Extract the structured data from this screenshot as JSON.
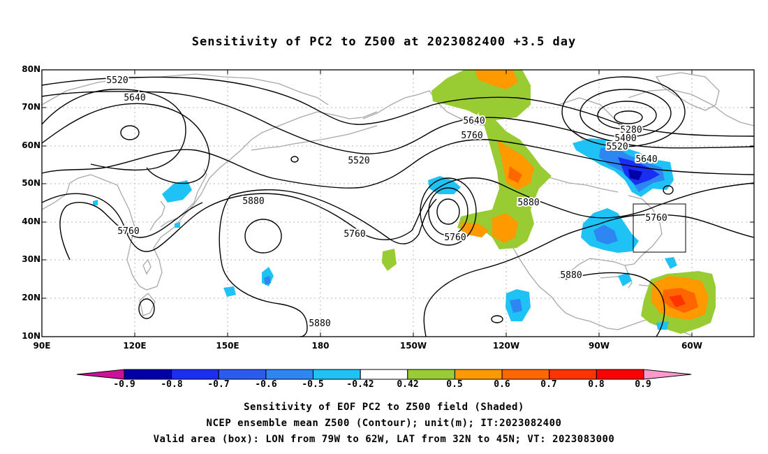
{
  "title": "Sensitivity of PC2 to Z500 at 2023082400 +3.5 day",
  "lat_labels": [
    "80N",
    "70N",
    "60N",
    "50N",
    "40N",
    "30N",
    "20N",
    "10N"
  ],
  "lon_labels": [
    "90E",
    "120E",
    "150E",
    "180",
    "150W",
    "120W",
    "90W",
    "60W"
  ],
  "contour_labels": [
    "5520",
    "5640",
    "5520",
    "5760",
    "5880",
    "5760",
    "5760",
    "5640",
    "5760",
    "5880",
    "5880",
    "5880",
    "5280",
    "5400",
    "5520",
    "5640",
    "5760"
  ],
  "colorbar": {
    "ticks": [
      "-0.9",
      "-0.8",
      "-0.7",
      "-0.6",
      "-0.5",
      "-0.42",
      "0.42",
      "0.5",
      "0.6",
      "0.7",
      "0.8",
      "0.9"
    ],
    "colors": [
      "#0000a8",
      "#1a2ef2",
      "#2a5cf0",
      "#2e86f2",
      "#1ec2f5",
      "#ffffff",
      "#99cc33",
      "#ff9900",
      "#ff6600",
      "#ff3300",
      "#ff0000"
    ],
    "low_end_color": "#cc1199",
    "high_end_color": "#ff99cc"
  },
  "captions": [
    "Sensitivity of EOF PC2 to Z500 field (Shaded)",
    "NCEP ensemble mean Z500 (Contour); unit(m); IT:2023082400",
    "Valid area (box): LON from 79W to 62W, LAT from 32N to 45N; VT: 2023083000"
  ]
}
